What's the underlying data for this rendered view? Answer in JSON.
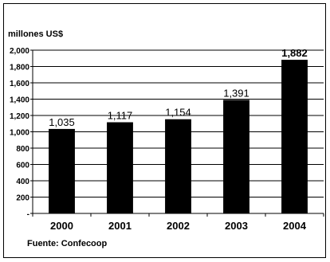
{
  "chart_data": {
    "type": "bar",
    "unit_label": "millones  US$",
    "categories": [
      "2000",
      "2001",
      "2002",
      "2003",
      "2004"
    ],
    "values": [
      1035,
      1117,
      1154,
      1391,
      1882
    ],
    "value_labels": [
      "1,035",
      "1,117",
      "1,154",
      "1,391",
      "1,882"
    ],
    "highlighted_value_index": 4,
    "y_ticks": [
      "-",
      "200",
      "400",
      "600",
      "800",
      "1,000",
      "1,200",
      "1,400",
      "1,600",
      "1,800",
      "2,000"
    ],
    "ylim": [
      0,
      2000
    ],
    "grid": true,
    "bar_color": "#000000",
    "source": "Fuente: Confecoop"
  }
}
